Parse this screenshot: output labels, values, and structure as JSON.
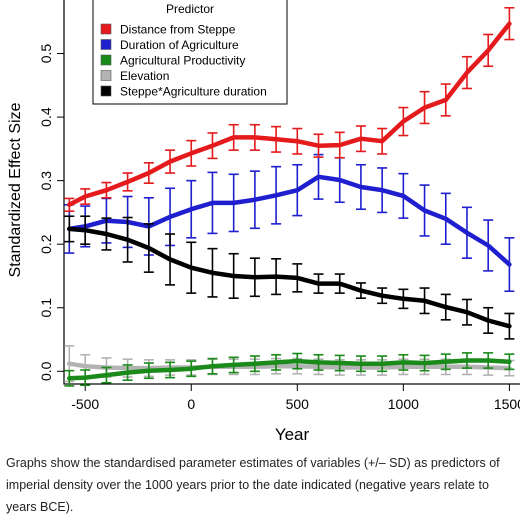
{
  "chart_data": {
    "type": "line",
    "xlabel": "Year",
    "ylabel": "Standardized Effect Size",
    "xlim": [
      -600,
      1550
    ],
    "ylim": [
      -0.02,
      0.6
    ],
    "x_ticks": [
      -500,
      0,
      500,
      1000,
      1500
    ],
    "x_tick_labels": [
      "-500",
      "0",
      "500",
      "1000",
      "1500"
    ],
    "y_ticks": [
      0.0,
      0.1,
      0.2,
      0.3,
      0.4,
      0.5
    ],
    "y_tick_labels": [
      "0.0",
      "0.1",
      "0.2",
      "0.3",
      "0.4",
      "0.5"
    ],
    "grid": false,
    "legend": {
      "title": "Predictor",
      "placement": "top-left"
    },
    "x": [
      -575,
      -500,
      -400,
      -300,
      -200,
      -100,
      0,
      100,
      200,
      300,
      400,
      500,
      600,
      700,
      800,
      900,
      1000,
      1100,
      1200,
      1300,
      1400,
      1500
    ],
    "series": [
      {
        "name": "Distance from Steppe",
        "color": "#e41a1c",
        "values": [
          0.262,
          0.275,
          0.285,
          0.298,
          0.312,
          0.33,
          0.343,
          0.355,
          0.368,
          0.368,
          0.365,
          0.362,
          0.355,
          0.356,
          0.366,
          0.362,
          0.393,
          0.415,
          0.427,
          0.47,
          0.505,
          0.547
        ],
        "sd": [
          0.01,
          0.012,
          0.012,
          0.014,
          0.016,
          0.018,
          0.02,
          0.02,
          0.02,
          0.02,
          0.02,
          0.02,
          0.018,
          0.02,
          0.02,
          0.02,
          0.022,
          0.025,
          0.025,
          0.025,
          0.025,
          0.025
        ]
      },
      {
        "name": "Duration of Agriculture",
        "color": "#1f1fcf",
        "values": [
          0.224,
          0.228,
          0.237,
          0.235,
          0.228,
          0.243,
          0.255,
          0.265,
          0.265,
          0.27,
          0.277,
          0.285,
          0.306,
          0.301,
          0.29,
          0.285,
          0.276,
          0.253,
          0.24,
          0.218,
          0.198,
          0.168
        ],
        "sd": [
          0.038,
          0.032,
          0.035,
          0.04,
          0.045,
          0.045,
          0.045,
          0.048,
          0.045,
          0.045,
          0.045,
          0.04,
          0.035,
          0.035,
          0.035,
          0.035,
          0.035,
          0.04,
          0.04,
          0.04,
          0.04,
          0.042
        ]
      },
      {
        "name": "Agricultural Productivity",
        "color": "#1a8a1a",
        "values": [
          -0.011,
          -0.01,
          -0.006,
          -0.002,
          0.001,
          0.002,
          0.004,
          0.008,
          0.01,
          0.012,
          0.014,
          0.016,
          0.014,
          0.013,
          0.012,
          0.012,
          0.014,
          0.013,
          0.015,
          0.017,
          0.017,
          0.015
        ],
        "sd": [
          0.012,
          0.012,
          0.012,
          0.012,
          0.012,
          0.012,
          0.012,
          0.012,
          0.012,
          0.012,
          0.012,
          0.012,
          0.012,
          0.012,
          0.012,
          0.012,
          0.012,
          0.012,
          0.012,
          0.012,
          0.012,
          0.012
        ]
      },
      {
        "name": "Elevation",
        "color": "#b3b3b3",
        "values": [
          0.012,
          0.008,
          0.006,
          0.005,
          0.005,
          0.006,
          0.006,
          0.007,
          0.007,
          0.007,
          0.008,
          0.008,
          0.007,
          0.006,
          0.006,
          0.006,
          0.007,
          0.007,
          0.007,
          0.007,
          0.006,
          0.005
        ],
        "sd": [
          0.028,
          0.018,
          0.015,
          0.014,
          0.013,
          0.012,
          0.012,
          0.012,
          0.012,
          0.012,
          0.012,
          0.012,
          0.012,
          0.012,
          0.012,
          0.012,
          0.012,
          0.012,
          0.012,
          0.012,
          0.012,
          0.012
        ]
      },
      {
        "name": "Steppe*Agriculture duration",
        "color": "#000000",
        "values": [
          0.224,
          0.222,
          0.216,
          0.207,
          0.194,
          0.176,
          0.163,
          0.155,
          0.15,
          0.148,
          0.149,
          0.147,
          0.138,
          0.138,
          0.127,
          0.119,
          0.114,
          0.111,
          0.101,
          0.093,
          0.08,
          0.071
        ],
        "sd": [
          0.02,
          0.022,
          0.025,
          0.035,
          0.038,
          0.04,
          0.04,
          0.038,
          0.035,
          0.03,
          0.028,
          0.022,
          0.015,
          0.015,
          0.012,
          0.012,
          0.015,
          0.02,
          0.02,
          0.02,
          0.02,
          0.02
        ]
      }
    ]
  },
  "caption": "Graphs show the standardised parameter estimates of variables (+/– SD) as predictors of imperial density over the 1000 years prior to the date indicated (negative years relate to years BCE)."
}
